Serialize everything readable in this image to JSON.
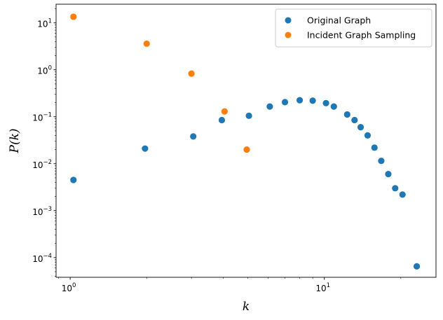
{
  "chart_data": {
    "type": "scatter",
    "xscale": "log",
    "yscale": "log",
    "xlim": [
      0.88,
      27.5
    ],
    "ylim": [
      3.8e-05,
      25
    ],
    "xlabel": "k",
    "ylabel": "P(k)",
    "legend_placement": "top-right",
    "grid": false,
    "x_ticks": [
      {
        "value": 1,
        "base": "10",
        "exp": "0"
      },
      {
        "value": 10,
        "base": "10",
        "exp": "1"
      }
    ],
    "y_ticks": [
      {
        "value": 0.0001,
        "base": "10",
        "exp": "−4"
      },
      {
        "value": 0.001,
        "base": "10",
        "exp": "−3"
      },
      {
        "value": 0.01,
        "base": "10",
        "exp": "−2"
      },
      {
        "value": 0.1,
        "base": "10",
        "exp": "−1"
      },
      {
        "value": 1,
        "base": "10",
        "exp": "0"
      },
      {
        "value": 10,
        "base": "10",
        "exp": "1"
      }
    ],
    "series": [
      {
        "name": "Original Graph",
        "color": "#1f77b4",
        "points": [
          [
            1.03,
            0.0045
          ],
          [
            1.97,
            0.021
          ],
          [
            3.05,
            0.038
          ],
          [
            3.95,
            0.085
          ],
          [
            5.05,
            0.105
          ],
          [
            6.1,
            0.165
          ],
          [
            7.0,
            0.205
          ],
          [
            8.0,
            0.225
          ],
          [
            9.0,
            0.22
          ],
          [
            10.15,
            0.195
          ],
          [
            10.9,
            0.165
          ],
          [
            12.3,
            0.112
          ],
          [
            13.15,
            0.085
          ],
          [
            13.9,
            0.06
          ],
          [
            14.8,
            0.04
          ],
          [
            15.75,
            0.022
          ],
          [
            16.75,
            0.0115
          ],
          [
            17.85,
            0.006
          ],
          [
            19.0,
            0.003
          ],
          [
            20.3,
            0.0022
          ],
          [
            23.1,
            6.5e-05
          ]
        ]
      },
      {
        "name": "Incident Graph Sampling",
        "color": "#ff7f0e",
        "points": [
          [
            1.03,
            13.5
          ],
          [
            2.0,
            3.6
          ],
          [
            3.0,
            0.83
          ],
          [
            4.05,
            0.13
          ],
          [
            4.95,
            0.02
          ]
        ]
      }
    ]
  }
}
